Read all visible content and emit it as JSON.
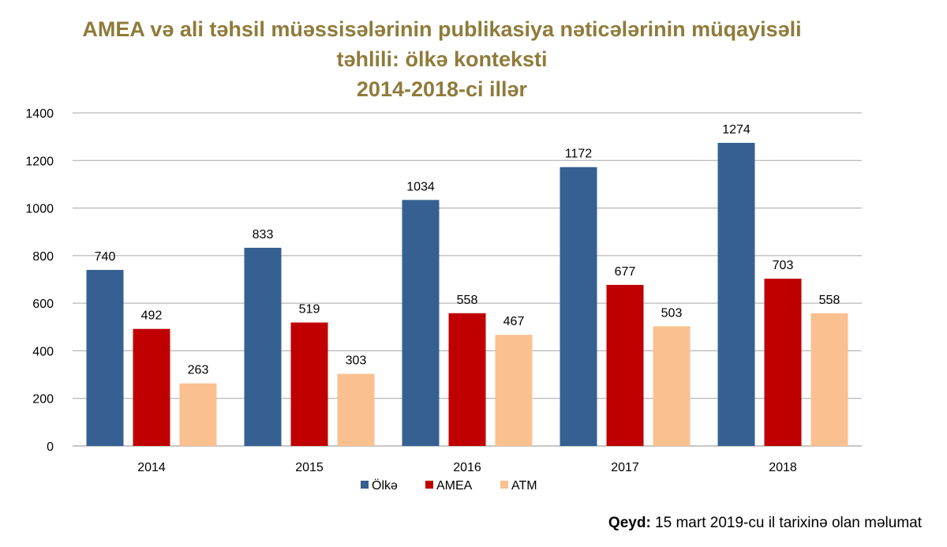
{
  "title_lines": [
    "AMEA və ali təhsil müəssisələrinin publikasiya nəticələrinin müqayisəli",
    "təhlili: ölkə konteksti",
    "2014-2018-ci illər"
  ],
  "note": {
    "label": "Qeyd:",
    "text": " 15 mart 2019-cu il tarixinə olan məlumat"
  },
  "chart_data": {
    "type": "bar",
    "categories": [
      "2014",
      "2015",
      "2016",
      "2017",
      "2018"
    ],
    "series": [
      {
        "name": "Ölkə",
        "color": "#366092",
        "values": [
          740,
          833,
          1034,
          1172,
          1274
        ]
      },
      {
        "name": "AMEA",
        "color": "#c00000",
        "values": [
          492,
          519,
          558,
          677,
          703
        ]
      },
      {
        "name": "ATM",
        "color": "#fac090",
        "values": [
          263,
          303,
          467,
          503,
          558
        ]
      }
    ],
    "y_ticks": [
      0,
      200,
      400,
      600,
      800,
      1000,
      1200,
      1400
    ],
    "ylim": [
      0,
      1400
    ],
    "grid": true,
    "legend_position": "bottom",
    "data_labels": true
  }
}
